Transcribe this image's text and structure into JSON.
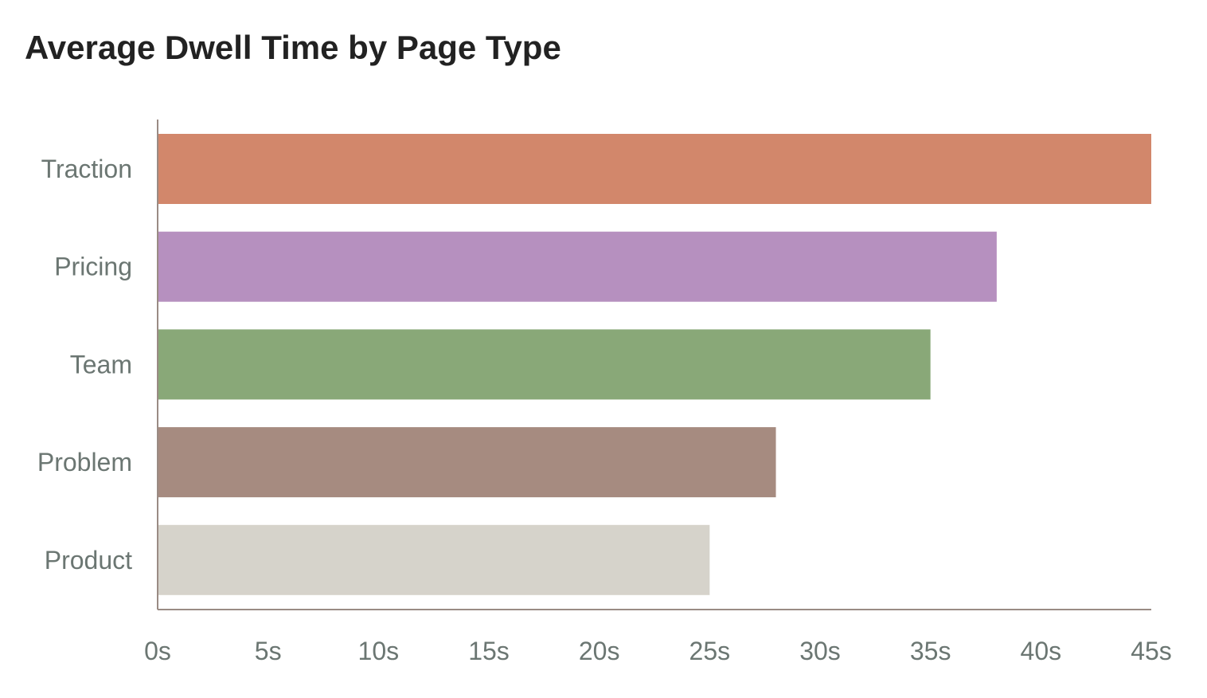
{
  "chart_data": {
    "type": "bar",
    "orientation": "horizontal",
    "title": "Average Dwell Time by Page Type",
    "xlabel": "",
    "ylabel": "",
    "categories": [
      "Traction",
      "Pricing",
      "Team",
      "Problem",
      "Product"
    ],
    "values": [
      45,
      38,
      35,
      28,
      25
    ],
    "unit_suffix": "s",
    "xlim": [
      0,
      45
    ],
    "x_ticks": [
      "0s",
      "5s",
      "10s",
      "15s",
      "20s",
      "25s",
      "30s",
      "35s",
      "40s",
      "45s"
    ],
    "x_tick_values": [
      0,
      5,
      10,
      15,
      20,
      25,
      30,
      35,
      40,
      45
    ],
    "colors": [
      "#d2876b",
      "#b690bf",
      "#89a878",
      "#a68b80",
      "#d6d3cb"
    ],
    "axis_color": "#9a8b84",
    "grid": false,
    "legend": "none"
  }
}
